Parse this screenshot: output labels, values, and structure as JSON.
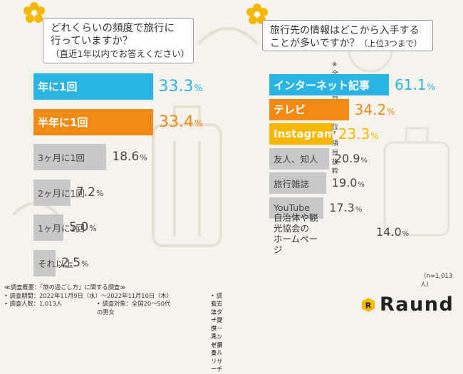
{
  "left": {
    "question_line1": "どれくらいの頻度で旅行に",
    "question_line2": "行っていますか？",
    "question_sub": "（直近1年以内でお答えください）",
    "chart_data": {
      "type": "bar",
      "orientation": "horizontal",
      "categories": [
        "年に1回",
        "半年に1回",
        "3ヶ月に1回",
        "2ヶ月に1回",
        "1ヶ月に1回",
        "それ以上"
      ],
      "values": [
        33.3,
        33.4,
        18.6,
        7.2,
        5.0,
        2.5
      ],
      "value_texts": [
        "33.3",
        "33.4",
        "18.6",
        "7.2",
        "5.0",
        "2.5"
      ],
      "unit": "%",
      "colors": [
        "#29b4e3",
        "#ef8a14",
        "#c8c8c8",
        "#c8c8c8",
        "#c8c8c8",
        "#c8c8c8"
      ]
    }
  },
  "right": {
    "question_line1": "旅行先の情報はどこから入手する",
    "question_line2": "ことが多いですか？",
    "question_sub": "（上位3つまで）",
    "note": "※全12項目中上位7項目抜粋",
    "sample_size": "（n=1,013人）",
    "chart_data": {
      "type": "bar",
      "orientation": "horizontal",
      "categories": [
        "インターネット記事",
        "テレビ",
        "Instagram",
        "友人、知人",
        "旅行雑誌",
        "YouTube",
        "自治体や観光協会のホームページ"
      ],
      "category_lines": [
        [
          "インターネット記事"
        ],
        [
          "テレビ"
        ],
        [
          "Instagram"
        ],
        [
          "友人、知人"
        ],
        [
          "旅行雑誌"
        ],
        [
          "YouTube"
        ],
        [
          "自治体や観光協会の",
          "ホームページ"
        ]
      ],
      "values": [
        61.1,
        34.2,
        23.3,
        20.9,
        19.0,
        17.3,
        14.0
      ],
      "value_texts": [
        "61.1",
        "34.2",
        "23.3",
        "20.9",
        "19.0",
        "17.3",
        "14.0"
      ],
      "unit": "%",
      "colors": [
        "#29b4e3",
        "#ef8a14",
        "#f5b700",
        "#c8c8c8",
        "#c8c8c8",
        "#c8c8c8",
        "#c8c8c8"
      ]
    }
  },
  "footer": {
    "line1": "≪調査概要：「旅の過ごし方」に関する調査≫",
    "period": "• 調査期間：2022年11月9日（水）〜2022年11月10日（木）",
    "method": "• 調査方法：インターネット調査",
    "count": "• 調査人数：1,013人",
    "target": "• 調査対象：全国20〜50代の男女",
    "provider": "• モニター提供元：ゼネラルリサーチ"
  },
  "brand": {
    "name": "Raund"
  }
}
